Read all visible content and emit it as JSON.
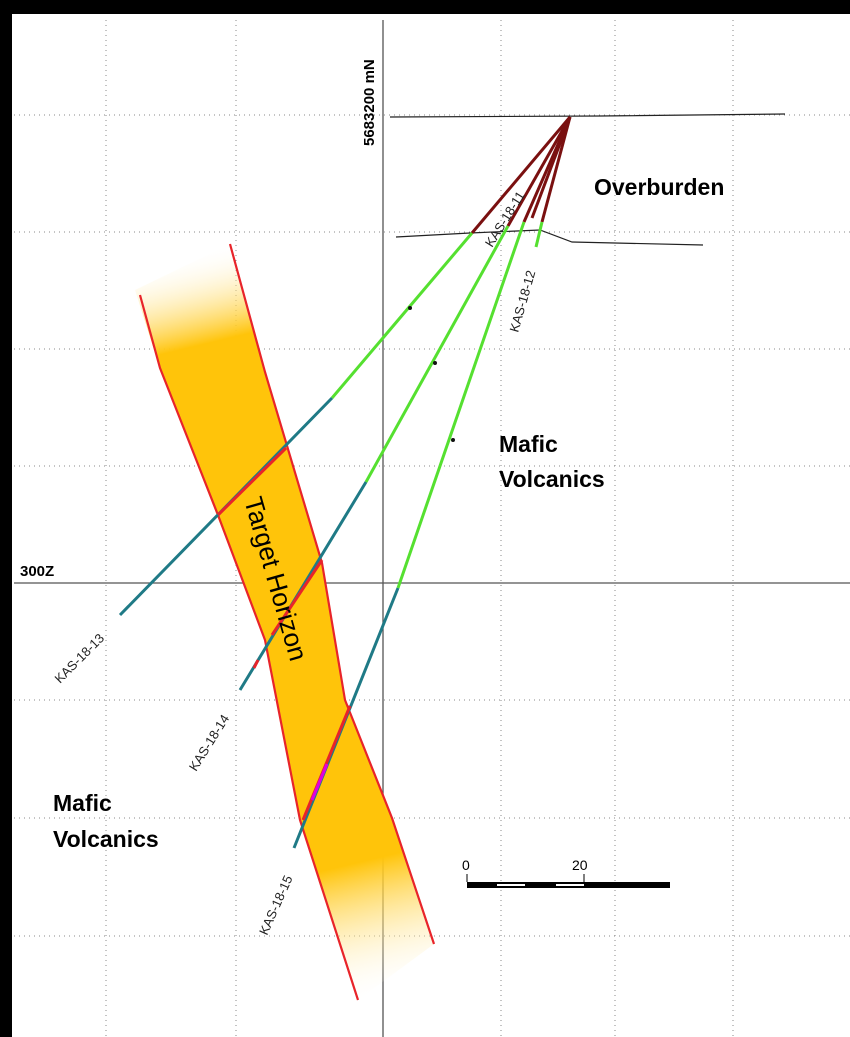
{
  "axes": {
    "northing_label": "5683200 mN",
    "elevation_label": "300Z"
  },
  "units": {
    "overburden": "Overburden",
    "mafic_upper": {
      "line1": "Mafic",
      "line2": "Volcanics"
    },
    "mafic_lower": {
      "line1": "Mafic",
      "line2": "Volcanics"
    },
    "target": "Target Horizon"
  },
  "drill_holes": [
    {
      "id": "KAS-18-11"
    },
    {
      "id": "KAS-18-12"
    },
    {
      "id": "KAS-18-13"
    },
    {
      "id": "KAS-18-14"
    },
    {
      "id": "KAS-18-15"
    }
  ],
  "scale_bar": {
    "start": "0",
    "mid": "20"
  },
  "colors": {
    "overburden_trace": "#7a1010",
    "low_grade_trace": "#55e030",
    "deep_trace": "#1f7a86",
    "horizon_fill": "#ffc40a",
    "horizon_outline": "#e8242a",
    "mineralized": "#e000e0"
  }
}
